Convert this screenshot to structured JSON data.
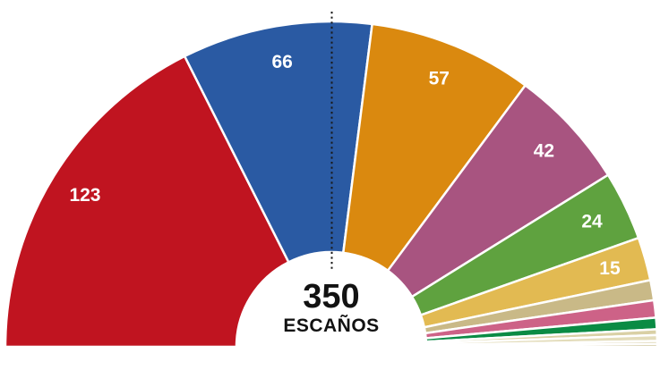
{
  "chart_data": {
    "type": "pie",
    "variant": "half-donut-parliament",
    "title": "",
    "total_seats": 350,
    "center_label": {
      "value": "350",
      "caption": "ESCAÑOS"
    },
    "label_color": "#ffffff",
    "majority_line": {
      "show": true,
      "color": "#1a1a1a",
      "style": "dotted"
    },
    "legend_position": "none",
    "series": [
      {
        "seats": 123,
        "label": "123",
        "color": "#c01420"
      },
      {
        "seats": 66,
        "label": "66",
        "color": "#2a5aa3"
      },
      {
        "seats": 57,
        "label": "57",
        "color": "#da890f"
      },
      {
        "seats": 42,
        "label": "42",
        "color": "#a85480"
      },
      {
        "seats": 24,
        "label": "24",
        "color": "#5fa23f"
      },
      {
        "seats": 15,
        "label": "15",
        "color": "#e2ba52"
      },
      {
        "seats": 7,
        "label": "",
        "color": "#c9b987"
      },
      {
        "seats": 6,
        "label": "",
        "color": "#cd6287"
      },
      {
        "seats": 4,
        "label": "",
        "color": "#0a8b44"
      },
      {
        "seats": 2,
        "label": "",
        "color": "#d9d0a5"
      },
      {
        "seats": 2,
        "label": "",
        "color": "#e3dcba"
      },
      {
        "seats": 1,
        "label": "",
        "color": "#d3c89b"
      },
      {
        "seats": 1,
        "label": "",
        "color": "#c9bd8d"
      }
    ]
  }
}
